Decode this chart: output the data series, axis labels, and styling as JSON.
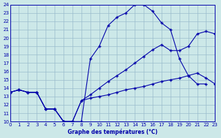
{
  "xlabel": "Graphe des températures (°C)",
  "xlim": [
    0,
    23
  ],
  "ylim": [
    10,
    24
  ],
  "xticks": [
    0,
    1,
    2,
    3,
    4,
    5,
    6,
    7,
    8,
    9,
    10,
    11,
    12,
    13,
    14,
    15,
    16,
    17,
    18,
    19,
    20,
    21,
    22,
    23
  ],
  "yticks": [
    10,
    11,
    12,
    13,
    14,
    15,
    16,
    17,
    18,
    19,
    20,
    21,
    22,
    23,
    24
  ],
  "bg_color": "#cce8e8",
  "line_color": "#0000aa",
  "grid_color": "#99bbcc",
  "curve1_x": [
    0,
    1,
    2,
    3,
    4,
    5,
    6,
    7,
    8,
    9,
    10,
    11,
    12,
    13,
    14,
    15,
    16,
    17,
    18,
    19,
    20,
    21,
    22
  ],
  "curve1_y": [
    13.5,
    13.8,
    13.5,
    13.5,
    11.5,
    11.5,
    10.0,
    10.0,
    10.0,
    17.5,
    19.0,
    21.5,
    22.5,
    23.0,
    24.0,
    24.0,
    23.2,
    21.8,
    21.0,
    17.5,
    15.5,
    14.5,
    14.5
  ],
  "curve2_x": [
    0,
    1,
    2,
    3,
    4,
    5,
    6,
    7,
    8,
    9,
    10,
    11,
    12,
    13,
    14,
    15,
    16,
    17,
    18,
    19,
    20,
    21,
    22,
    23
  ],
  "curve2_y": [
    13.5,
    13.8,
    13.5,
    13.5,
    11.5,
    11.5,
    10.0,
    10.0,
    12.5,
    13.2,
    14.0,
    14.8,
    15.5,
    16.2,
    17.0,
    17.8,
    18.6,
    19.2,
    18.5,
    18.5,
    19.0,
    20.5,
    20.8,
    20.5
  ],
  "curve3_x": [
    0,
    1,
    2,
    3,
    4,
    5,
    6,
    7,
    8,
    9,
    10,
    11,
    12,
    13,
    14,
    15,
    16,
    17,
    18,
    19,
    20,
    21,
    22,
    23
  ],
  "curve3_y": [
    13.5,
    13.8,
    13.5,
    13.5,
    11.5,
    11.5,
    10.0,
    10.0,
    12.5,
    12.8,
    13.0,
    13.2,
    13.5,
    13.8,
    14.0,
    14.2,
    14.5,
    14.8,
    15.0,
    15.2,
    15.5,
    15.8,
    15.2,
    14.5
  ]
}
